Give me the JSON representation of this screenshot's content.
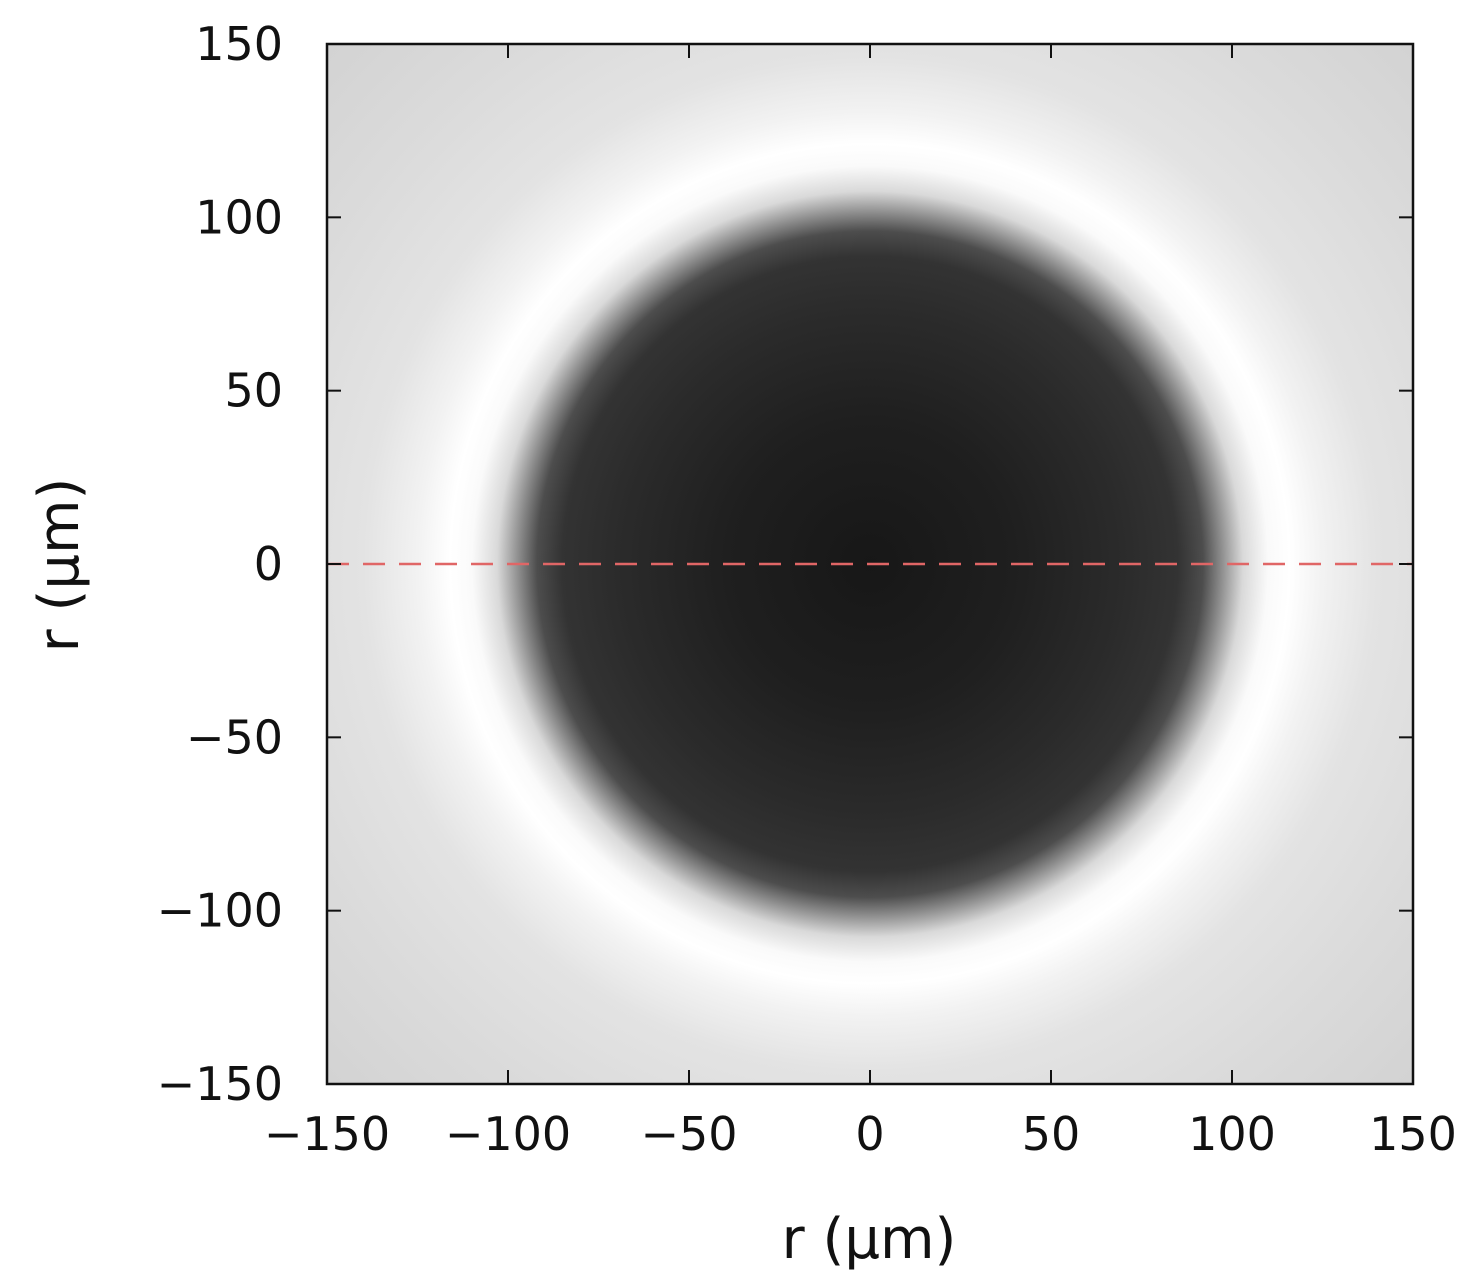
{
  "chart_data": {
    "type": "heatmap",
    "title": "",
    "xlabel": "r (μm)",
    "ylabel": "r (μm)",
    "xlim": [
      -150,
      150
    ],
    "ylim": [
      -150,
      150
    ],
    "xticks": [
      -150,
      -100,
      -50,
      0,
      50,
      100,
      150
    ],
    "yticks": [
      -150,
      -100,
      -50,
      0,
      50,
      100,
      150
    ],
    "xtick_labels": [
      "−150",
      "−100",
      "−50",
      "0",
      "50",
      "100",
      "150"
    ],
    "ytick_labels": [
      "−150",
      "−100",
      "−50",
      "0",
      "50",
      "100",
      "150"
    ],
    "colormap": "grayscale",
    "grid": false,
    "legend": "none",
    "image": {
      "description_values": {
        "dark_disk_radius_um": 95,
        "bright_ring_radius_um": 115,
        "center_um": [
          0,
          0
        ]
      },
      "radial_profile": {
        "r_um": [
          0,
          40,
          70,
          85,
          92,
          97,
          103,
          110,
          116,
          125,
          140,
          170,
          215
        ],
        "intensity": [
          0.09,
          0.12,
          0.17,
          0.2,
          0.3,
          0.55,
          0.85,
          0.98,
          1.0,
          0.95,
          0.89,
          0.86,
          0.82
        ]
      }
    },
    "line": {
      "style": "dashed",
      "color": "#e06666",
      "y": 0,
      "x": [
        -150,
        150
      ]
    }
  }
}
